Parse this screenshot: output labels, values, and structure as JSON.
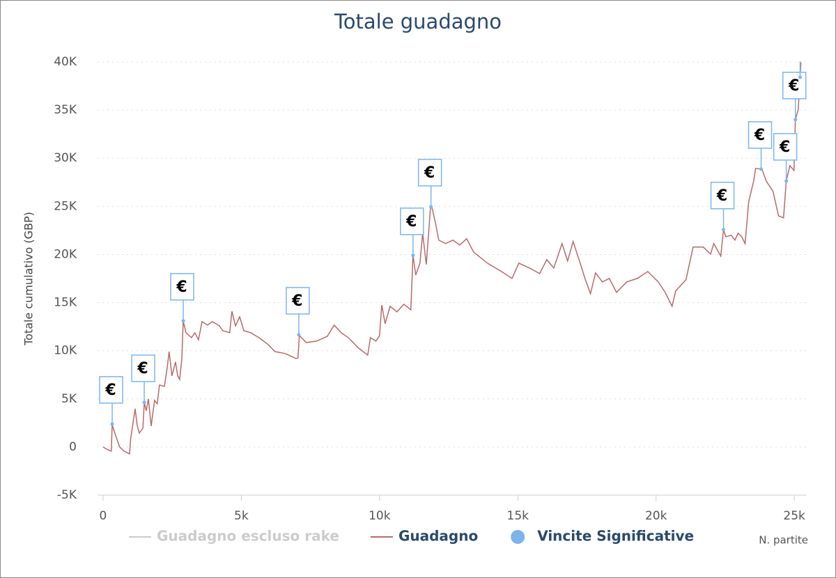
{
  "chart_data": {
    "type": "line",
    "title": "Totale guadagno",
    "y_label": "Totale cumulativo (GBP)",
    "x_label": "N. partite",
    "xlim": [
      -200,
      25450
    ],
    "ylim": [
      -5000,
      40000
    ],
    "xticks": [
      0,
      {
        "value": 5000,
        "label": "5k"
      },
      {
        "value": 10000,
        "label": "10k"
      },
      {
        "value": 15000,
        "label": "15k"
      },
      {
        "value": 20000,
        "label": "20k"
      },
      {
        "value": 25000,
        "label": "25k"
      }
    ],
    "yticks": [
      {
        "value": -5000,
        "label": "-5K"
      },
      0,
      {
        "value": 5000,
        "label": "5K"
      },
      {
        "value": 10000,
        "label": "10K"
      },
      {
        "value": 15000,
        "label": "15K"
      },
      {
        "value": 20000,
        "label": "20K"
      },
      {
        "value": 25000,
        "label": "25K"
      },
      {
        "value": 30000,
        "label": "30K"
      },
      {
        "value": 35000,
        "label": "35K"
      },
      {
        "value": 40000,
        "label": "40K"
      }
    ],
    "grid": true,
    "series": [
      {
        "name": "Guadagno escluso rake",
        "type": "line",
        "color": "#cccccc",
        "visible": false
      },
      {
        "name": "Guadagno",
        "type": "line",
        "color": "#b86a6a",
        "visible": true,
        "x": [
          0,
          180,
          300,
          330,
          450,
          600,
          760,
          960,
          1000,
          1160,
          1230,
          1310,
          1440,
          1490,
          1560,
          1640,
          1740,
          1860,
          1960,
          2040,
          2220,
          2320,
          2390,
          2490,
          2620,
          2700,
          2770,
          2850,
          2900,
          3000,
          3200,
          3320,
          3450,
          3580,
          3780,
          3950,
          4210,
          4330,
          4580,
          4660,
          4790,
          4940,
          5090,
          5340,
          5640,
          5970,
          6220,
          6600,
          6980,
          7050,
          7100,
          7350,
          7730,
          8110,
          8360,
          8610,
          8870,
          9240,
          9570,
          9670,
          9870,
          10000,
          10080,
          10200,
          10380,
          10630,
          10880,
          11130,
          11210,
          11310,
          11460,
          11560,
          11690,
          11840,
          11890,
          12020,
          12140,
          12390,
          12650,
          12900,
          13150,
          13400,
          13900,
          14410,
          14790,
          15040,
          15420,
          15790,
          16050,
          16300,
          16600,
          16800,
          17000,
          17230,
          17430,
          17630,
          17810,
          18060,
          18310,
          18570,
          18940,
          19320,
          19700,
          20080,
          20330,
          20580,
          20710,
          21080,
          21340,
          21710,
          21970,
          22090,
          22340,
          22440,
          22520,
          22720,
          22850,
          22970,
          23100,
          23220,
          23350,
          23530,
          23600,
          23830,
          23980,
          24230,
          24430,
          24610,
          24710,
          24840,
          24990,
          25040,
          25140,
          25210,
          25240
        ],
        "values": [
          0,
          -290,
          -430,
          2300,
          1230,
          0,
          -430,
          -720,
          870,
          3980,
          2300,
          1450,
          1950,
          4630,
          3760,
          5000,
          2170,
          4850,
          4490,
          6440,
          6300,
          8250,
          9910,
          7380,
          8830,
          7380,
          7020,
          9190,
          13100,
          11870,
          11360,
          11870,
          11140,
          13020,
          12660,
          13020,
          12590,
          12080,
          11870,
          14110,
          12590,
          13530,
          12080,
          11870,
          11360,
          10640,
          9910,
          9700,
          9190,
          9260,
          11580,
          10850,
          11000,
          11500,
          12660,
          11870,
          11360,
          10270,
          9550,
          11360,
          11000,
          11580,
          14760,
          12810,
          14620,
          14040,
          14830,
          14250,
          19900,
          17870,
          19100,
          22210,
          18960,
          24750,
          24960,
          23300,
          21490,
          21130,
          21490,
          20980,
          21640,
          20260,
          19100,
          18230,
          17510,
          19100,
          18600,
          18020,
          19460,
          18600,
          21130,
          19320,
          21350,
          19320,
          17510,
          15920,
          18090,
          17150,
          17510,
          16060,
          17150,
          17510,
          18230,
          17150,
          16060,
          14620,
          16210,
          17370,
          20770,
          20770,
          20040,
          21130,
          19830,
          22580,
          21850,
          22000,
          21490,
          22210,
          21850,
          21130,
          25470,
          27640,
          28940,
          28870,
          27640,
          26560,
          24020,
          23810,
          27640,
          29230,
          28730,
          34010,
          35020,
          38490,
          39940
        ]
      },
      {
        "name": "Vincite Significative",
        "type": "scatter",
        "color": "#7cb5ec",
        "visible": true,
        "flag_label": "€",
        "x": [
          330,
          1490,
          2900,
          7080,
          11210,
          11860,
          22440,
          23800,
          24710,
          25040,
          25210
        ],
        "values": [
          2390,
          4630,
          13100,
          11650,
          19900,
          24960,
          22580,
          28870,
          27640,
          34010,
          38420
        ]
      }
    ]
  }
}
